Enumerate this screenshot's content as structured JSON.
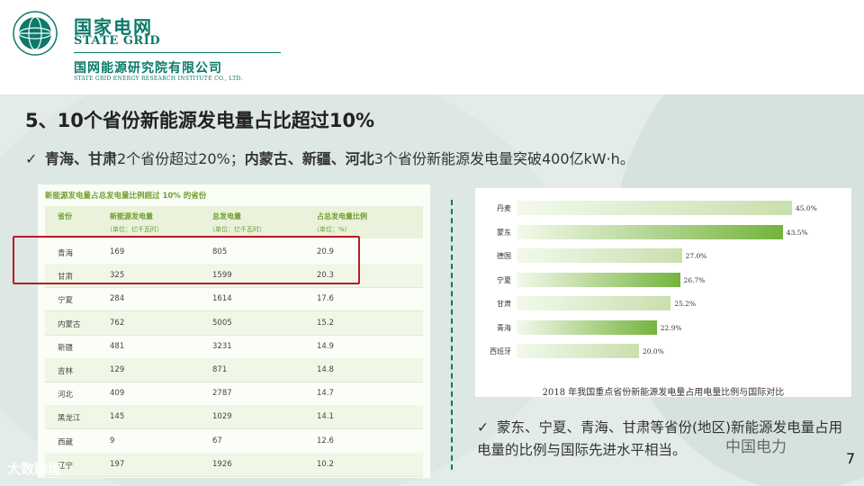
{
  "header": {
    "brand_cn": "国家电网",
    "brand_en": "STATE GRID",
    "institute_cn": "国网能源研究院有限公司",
    "institute_en": "STATE GRID ENERGY RESEARCH INSTITUTE CO., LTD."
  },
  "slide": {
    "title": "5、10个省份新能源发电量占比超过10%",
    "bullet1": {
      "bold_a": "青海、甘肃",
      "text_a": "2个省份超过20%；",
      "bold_b": "内蒙古、新疆、河北",
      "text_b": "3个省份新能源发电量突破400亿kW·h。"
    },
    "bullet2": "蒙东、宁夏、青海、甘肃等省份(地区)新能源发电量占用电量的比例与国际先进水平相当。",
    "page_number": "7"
  },
  "table": {
    "caption": "新能源发电量占总发电量比例超过 10% 的省份",
    "headers": [
      {
        "title": "省份",
        "unit": ""
      },
      {
        "title": "新能源发电量",
        "unit": "（单位：亿千瓦时）"
      },
      {
        "title": "总发电量",
        "unit": "（单位：亿千瓦时）"
      },
      {
        "title": "占总发电量比例",
        "unit": "（单位：%）"
      }
    ],
    "rows": [
      [
        "青海",
        "169",
        "805",
        "20.9"
      ],
      [
        "甘肃",
        "325",
        "1599",
        "20.3"
      ],
      [
        "宁夏",
        "284",
        "1614",
        "17.6"
      ],
      [
        "内蒙古",
        "762",
        "5005",
        "15.2"
      ],
      [
        "新疆",
        "481",
        "3231",
        "14.9"
      ],
      [
        "吉林",
        "129",
        "871",
        "14.8"
      ],
      [
        "河北",
        "409",
        "2787",
        "14.7"
      ],
      [
        "黑龙江",
        "145",
        "1029",
        "14.1"
      ],
      [
        "西藏",
        "9",
        "67",
        "12.6"
      ],
      [
        "辽宁",
        "197",
        "1926",
        "10.2"
      ]
    ],
    "highlight_color": "#b81c2a"
  },
  "chart_data": {
    "type": "bar",
    "orientation": "horizontal",
    "title": "2018 年我国重点省份新能源发电量占用电量比例与国际对比",
    "categories": [
      "丹麦",
      "蒙东",
      "德国",
      "宁夏",
      "甘肃",
      "青海",
      "西班牙"
    ],
    "values": [
      45.0,
      43.5,
      27.0,
      26.7,
      25.2,
      22.9,
      20.0
    ],
    "value_labels": [
      "45.0%",
      "43.5%",
      "27.0%",
      "26.7%",
      "25.2%",
      "22.9%",
      "20.0%"
    ],
    "xlim": [
      0,
      50
    ],
    "grid": false,
    "colors": {
      "highlight": "#74b43c",
      "fade": "#f3f9ec",
      "plain_start": "#c9dfae"
    },
    "highlighted": [
      false,
      true,
      false,
      true,
      false,
      true,
      false
    ]
  },
  "watermarks": {
    "wechat": "中国电力",
    "corner": "大数跨境"
  },
  "colors": {
    "brand": "#0b7a6a",
    "table_accent": "#6e9f2e",
    "background": "#e4ece9"
  }
}
